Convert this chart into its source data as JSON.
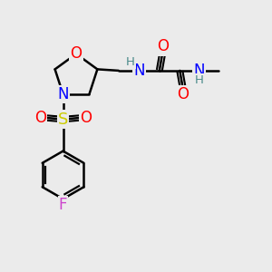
{
  "bg_color": "#ebebeb",
  "atom_colors": {
    "O": "#ff0000",
    "N": "#0000ff",
    "S": "#cccc00",
    "F": "#cc44cc",
    "H": "#4a8a8a",
    "C": "#000000"
  },
  "bond_color": "#000000",
  "font_size": 10.5
}
